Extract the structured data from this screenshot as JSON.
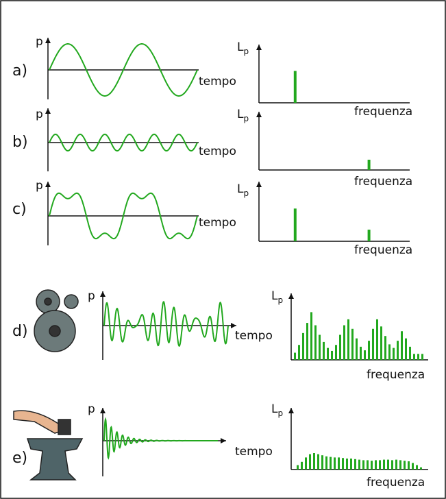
{
  "rows": [
    {
      "label": "a)",
      "y_axis": "p",
      "x_axis": "tempo",
      "spectrum_y": {
        "main": "L",
        "sub": "p"
      },
      "spectrum_x": "frequenza",
      "spectrum": {
        "x": [
          24
        ],
        "values": [
          62
        ]
      }
    },
    {
      "label": "b)",
      "y_axis": "p",
      "x_axis": "tempo",
      "spectrum_y": {
        "main": "L",
        "sub": "p"
      },
      "spectrum_x": "frequenza",
      "spectrum": {
        "x": [
          73
        ],
        "values": [
          20
        ]
      }
    },
    {
      "label": "c)",
      "y_axis": "p",
      "x_axis": "tempo",
      "spectrum_y": {
        "main": "L",
        "sub": "p"
      },
      "spectrum_x": "frequenza",
      "spectrum": {
        "x": [
          24,
          73
        ],
        "values": [
          62,
          22
        ]
      }
    },
    {
      "label": "d)",
      "y_axis": "p",
      "x_axis": "tempo",
      "spectrum_y": {
        "main": "L",
        "sub": "p"
      },
      "spectrum_x": "frequenza",
      "spectrum": {
        "x": [
          3,
          6,
          9,
          12,
          15,
          18,
          21,
          24,
          27,
          30,
          33,
          36,
          39,
          42,
          45,
          48,
          51,
          54,
          57,
          60,
          63,
          66,
          69,
          72,
          75,
          78,
          81,
          84,
          87,
          90,
          93,
          96
        ],
        "values": [
          12,
          25,
          45,
          62,
          80,
          58,
          42,
          30,
          20,
          15,
          25,
          42,
          58,
          68,
          52,
          36,
          22,
          16,
          32,
          52,
          68,
          56,
          40,
          26,
          20,
          32,
          48,
          36,
          22,
          10,
          10,
          10
        ]
      }
    },
    {
      "label": "e)",
      "y_axis": "p",
      "x_axis": "tempo",
      "spectrum_y": {
        "main": "L",
        "sub": "p"
      },
      "spectrum_x": "frequenza",
      "spectrum": {
        "x": [
          5,
          8,
          11,
          14,
          17,
          20,
          23,
          26,
          29,
          32,
          35,
          38,
          41,
          44,
          47,
          50,
          53,
          56,
          59,
          62,
          65,
          68,
          71,
          74,
          77,
          80,
          83,
          86,
          89,
          92,
          95
        ],
        "values": [
          8,
          14,
          22,
          28,
          30,
          28,
          26,
          24,
          23,
          22,
          22,
          21,
          20,
          20,
          19,
          18,
          17,
          17,
          16,
          17,
          17,
          18,
          18,
          17,
          18,
          17,
          16,
          15,
          12,
          8,
          4
        ]
      }
    }
  ]
}
